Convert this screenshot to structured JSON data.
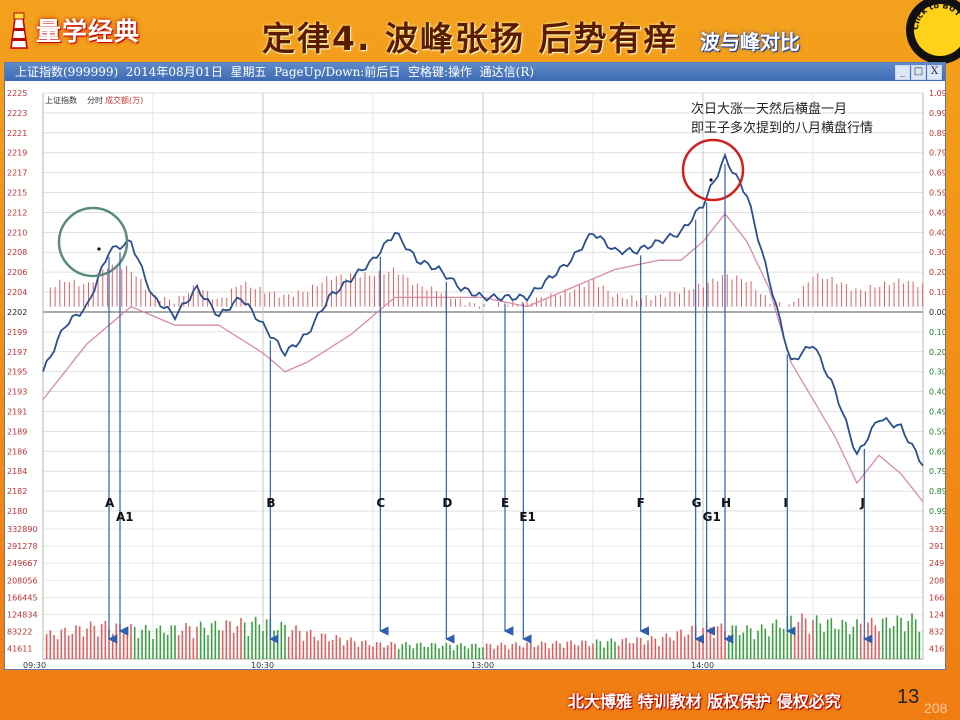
{
  "banner": {
    "logo_text": "量学经典",
    "title": "定律4. 波峰张扬 后势有痒",
    "subtitle": "波与峰对比",
    "badge_text": "Click to BUY NOW!"
  },
  "window": {
    "title": "上证指数(999999)  2014年08月01日  星期五  PageUp/Down:前后日  空格键:操作  通达信(R)",
    "minimize": "_",
    "restore": "□",
    "close": "X"
  },
  "chart_header": {
    "name": "上证指数",
    "mode": "分时",
    "volume_label": "成交额(万)"
  },
  "annotation": {
    "line1": "次日大涨一天然后横盘一月",
    "line2": "即王子多次提到的八月横盘行情"
  },
  "footer": {
    "text": "北大博雅 特训教材 版权保护 侵权必究",
    "page": "13",
    "page_ghost": "208"
  },
  "colors": {
    "price_line": "#2b4f8f",
    "avg_line": "#d88aa8",
    "up_bar": "#e06060",
    "down_bar": "#3aa040",
    "arrow": "#2f5fae",
    "circle_left": "#5a8a80",
    "circle_right": "#d02020"
  },
  "chart_data": {
    "type": "line",
    "title": "上证指数 分时",
    "prev_close": 2202,
    "price_axis": {
      "ticks": [
        2225,
        2223,
        2221,
        2219,
        2217,
        2215,
        2212,
        2210,
        2208,
        2206,
        2204,
        2202,
        2199,
        2197,
        2195,
        2193,
        2191,
        2189,
        2186,
        2184,
        2182,
        2180
      ],
      "pct_labels": [
        "1.09%",
        "0.99%",
        "0.89%",
        "0.79%",
        "0.69%",
        "0.59%",
        "0.49%",
        "0.40%",
        "0.30%",
        "0.20%",
        "0.10%",
        "0.00%",
        "0.10%",
        "0.20%",
        "0.30%",
        "0.40%",
        "0.49%",
        "0.59%",
        "0.69%",
        "0.79%",
        "0.89%",
        "0.99%"
      ],
      "ylim": [
        2180,
        2225
      ]
    },
    "volume_axis": {
      "ticks": [
        "332890",
        "291278",
        "249667",
        "208056",
        "166445",
        "124834",
        "83222",
        "41611"
      ],
      "ylim": [
        0,
        332890
      ]
    },
    "x_labels": [
      "09:30",
      "10:30",
      "13:00",
      "14:00"
    ],
    "series": [
      {
        "key": "price",
        "x": [
          0,
          6,
          12,
          18,
          24,
          30,
          36,
          42,
          48,
          54,
          60,
          66,
          72,
          78,
          84,
          90,
          96,
          102,
          108,
          114,
          120,
          126,
          132,
          138,
          144,
          150,
          156,
          162,
          168,
          174,
          180,
          186,
          192,
          198,
          204,
          210,
          216,
          222,
          228,
          234,
          240
        ],
        "values": [
          2195,
          2200,
          2202,
          2208,
          2209,
          2203,
          2201,
          2204,
          2201,
          2203,
          2200,
          2197,
          2199,
          2203,
          2205,
          2207,
          2210,
          2207,
          2206,
          2204,
          2203,
          2203,
          2203,
          2205,
          2207,
          2210,
          2208,
          2208,
          2209,
          2210,
          2213,
          2218,
          2214,
          2205,
          2196,
          2198,
          2193,
          2186,
          2190,
          2189,
          2185
        ]
      },
      {
        "key": "average",
        "x": [
          0,
          12,
          24,
          36,
          48,
          60,
          66,
          72,
          84,
          96,
          108,
          120,
          132,
          144,
          156,
          168,
          174,
          180,
          186,
          192,
          198,
          204,
          210,
          216,
          222,
          228,
          234,
          240
        ],
        "values": [
          2192,
          2198,
          2202,
          2200,
          2200,
          2197,
          2195,
          2196,
          2199,
          2203,
          2203,
          2203,
          2202,
          2204,
          2206,
          2207,
          2207,
          2209,
          2212,
          2209,
          2204,
          2196,
          2192,
          2188,
          2183,
          2186,
          2184,
          2181
        ]
      }
    ],
    "volume_profile": [
      {
        "x": 0,
        "v": 70000
      },
      {
        "x": 15,
        "v": 100000
      },
      {
        "x": 30,
        "v": 85000
      },
      {
        "x": 60,
        "v": 110000
      },
      {
        "x": 75,
        "v": 70000
      },
      {
        "x": 90,
        "v": 45000
      },
      {
        "x": 120,
        "v": 40000
      },
      {
        "x": 150,
        "v": 50000
      },
      {
        "x": 168,
        "v": 60000
      },
      {
        "x": 180,
        "v": 95000
      },
      {
        "x": 195,
        "v": 85000
      },
      {
        "x": 205,
        "v": 120000
      },
      {
        "x": 220,
        "v": 100000
      },
      {
        "x": 240,
        "v": 120000
      }
    ],
    "markers": [
      {
        "label": "A",
        "x": 18
      },
      {
        "label": "A1",
        "x": 21
      },
      {
        "label": "B",
        "x": 62
      },
      {
        "label": "C",
        "x": 92
      },
      {
        "label": "D",
        "x": 110
      },
      {
        "label": "E",
        "x": 126
      },
      {
        "label": "E1",
        "x": 131
      },
      {
        "label": "F",
        "x": 163
      },
      {
        "label": "G",
        "x": 178
      },
      {
        "label": "G1",
        "x": 181
      },
      {
        "label": "H",
        "x": 186
      },
      {
        "label": "I",
        "x": 203
      },
      {
        "label": "J",
        "x": 224
      }
    ]
  }
}
